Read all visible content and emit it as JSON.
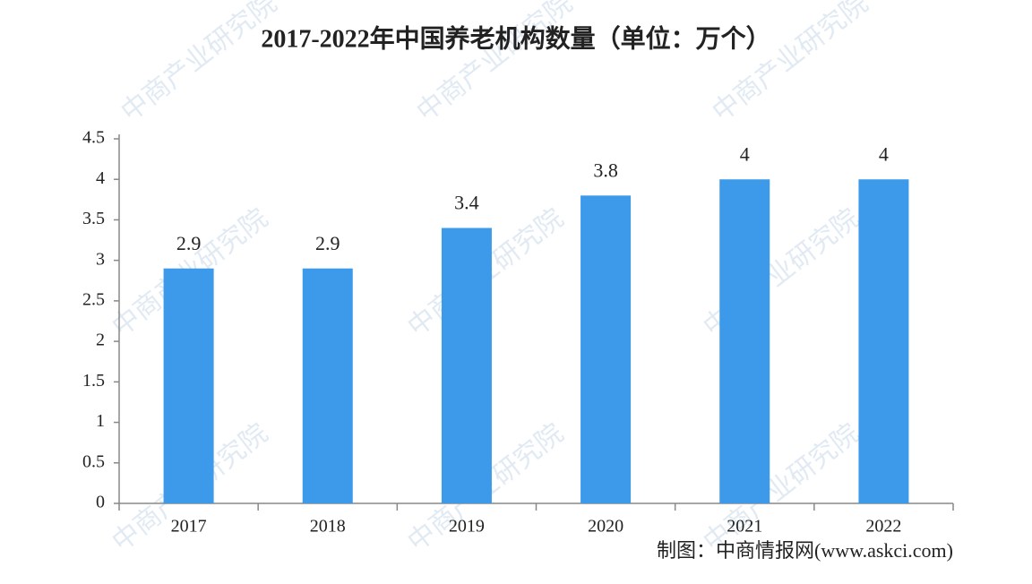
{
  "chart_data": {
    "type": "bar",
    "title": "2017-2022年中国养老机构数量（单位：万个）",
    "categories": [
      "2017",
      "2018",
      "2019",
      "2020",
      "2021",
      "2022"
    ],
    "values": [
      2.9,
      2.9,
      3.4,
      3.8,
      4,
      4
    ],
    "color": "#3d99ea",
    "ylim": [
      0,
      4.5
    ],
    "yticks": [
      0,
      0.5,
      1,
      1.5,
      2,
      2.5,
      3,
      3.5,
      4,
      4.5
    ],
    "grid": false,
    "source": "制图：中商情报网(www.askci.com)"
  },
  "watermark": "中商产业研究院"
}
